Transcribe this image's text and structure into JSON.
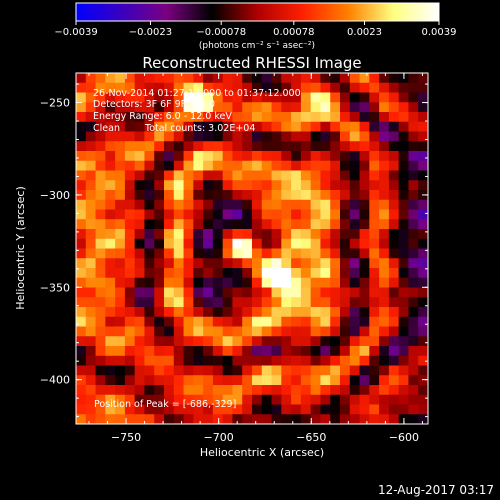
{
  "chart_data": {
    "type": "heatmap",
    "title": "Reconstructed RHESSI Image",
    "xlabel": "Heliocentric X (arcsec)",
    "ylabel": "Heliocentric Y (arcsec)",
    "xlim": [
      -777,
      -587
    ],
    "ylim": [
      -424,
      -234
    ],
    "x_ticks": [
      -750,
      -700,
      -650,
      -600
    ],
    "x_tick_labels": [
      "−750",
      "−700",
      "−650",
      "−600"
    ],
    "y_ticks": [
      -250,
      -300,
      -350,
      -400
    ],
    "y_tick_labels": [
      "−250",
      "−300",
      "−350",
      "−400"
    ],
    "colorbar": {
      "range": [
        -0.0039,
        0.0039
      ],
      "ticks": [
        -0.0039,
        -0.0023,
        -0.00078,
        0.00078,
        0.0023,
        0.0039
      ],
      "tick_labels": [
        "−0.0039",
        "−0.0023",
        "−0.00078",
        "0.00078",
        "0.0023",
        "0.0039"
      ],
      "units_label": "(photons cm⁻² s⁻¹ asec⁻²)",
      "stops": [
        "#0000ff",
        "#3a00c0",
        "#7a0080",
        "#000000",
        "#b00000",
        "#ff2000",
        "#ff8000",
        "#ffff80",
        "#ffffff"
      ]
    },
    "peak": {
      "x": -686,
      "y": -329,
      "value": 0.0039
    },
    "bright_sources": [
      {
        "x": -686,
        "y": -329,
        "value": 0.0039
      },
      {
        "x": -672,
        "y": -341,
        "value": 0.003
      },
      {
        "x": -716,
        "y": -245,
        "value": 0.0028
      },
      {
        "x": -648,
        "y": -246,
        "value": 0.0022
      },
      {
        "x": -666,
        "y": -346,
        "value": 0.0024
      }
    ],
    "annotations": {
      "time_range": "26-Nov-2014 01:27:12.000 to 01:37:12.000",
      "detectors": "Detectors: 3F 6F 9F, Att 0",
      "energy": "Energy Range: 6.0 - 12.0 keV",
      "clean": "Clean",
      "counts": "Total counts: 3.02E+04",
      "peak_label": "Position of Peak = [-686,-329]"
    }
  },
  "footer": {
    "timestamp": "12-Aug-2017 03:17"
  }
}
